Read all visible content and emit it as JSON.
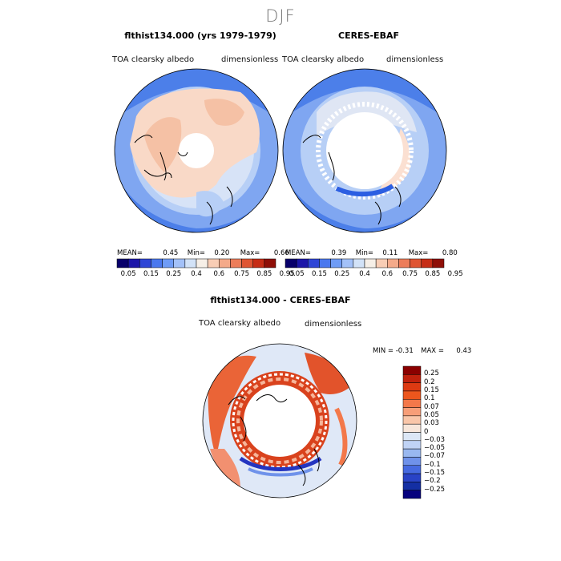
{
  "season": "DJF",
  "panels": [
    {
      "title": "flthist134.000 (yrs 1979-1979)",
      "left_label": "TOA clearsky albedo",
      "right_label": "dimensionless",
      "stats": {
        "mean_label": "MEAN=",
        "mean": "0.45",
        "min_label": "Min=",
        "min": "0.20",
        "max_label": "Max=",
        "max": "0.66"
      }
    },
    {
      "title": "CERES-EBAF",
      "left_label": "TOA clearsky albedo",
      "right_label": "dimensionless",
      "stats": {
        "mean_label": "MEAN=",
        "mean": "0.39",
        "min_label": "Min=",
        "min": "0.11",
        "max_label": "Max=",
        "max": "0.80"
      }
    }
  ],
  "diff": {
    "title": "flthist134.000 - CERES-EBAF",
    "left_label": "TOA clearsky albedo",
    "right_label": "dimensionless",
    "stats": {
      "min_label": "MIN =",
      "min": "-0.31",
      "max_label": "MAX =",
      "max": "0.43"
    }
  },
  "chart_data": [
    {
      "type": "heatmap",
      "projection": "north-polar-stereographic",
      "title": "flthist134.000 (yrs 1979-1979)",
      "variable": "TOA clearsky albedo",
      "units": "dimensionless",
      "mean": 0.45,
      "min": 0.2,
      "max": 0.66,
      "colorbar_levels": [
        "0.05",
        "0.15",
        "0.25",
        "0.4",
        "0.6",
        "0.75",
        "0.85",
        "0.95"
      ]
    },
    {
      "type": "heatmap",
      "projection": "north-polar-stereographic",
      "title": "CERES-EBAF",
      "variable": "TOA clearsky albedo",
      "units": "dimensionless",
      "mean": 0.39,
      "min": 0.11,
      "max": 0.8,
      "colorbar_levels": [
        "0.05",
        "0.15",
        "0.25",
        "0.4",
        "0.6",
        "0.75",
        "0.85",
        "0.95"
      ]
    },
    {
      "type": "heatmap",
      "projection": "north-polar-stereographic",
      "title": "flthist134.000 - CERES-EBAF",
      "variable": "TOA clearsky albedo",
      "units": "dimensionless",
      "min": -0.31,
      "max": 0.43,
      "colorbar_levels": [
        "0.25",
        "0.2",
        "0.15",
        "0.1",
        "0.07",
        "0.05",
        "0.03",
        "0",
        "−0.03",
        "−0.05",
        "−0.07",
        "−0.1",
        "−0.15",
        "−0.2",
        "−0.25"
      ]
    }
  ],
  "colorbars": {
    "top": {
      "colors": [
        "#08006b",
        "#1c16a8",
        "#2f46d6",
        "#4a78ee",
        "#6f9cf6",
        "#a3c1f8",
        "#d2e2f7",
        "#f6efe7",
        "#f8cdb5",
        "#f4aa8a",
        "#ec7d5a",
        "#df5533",
        "#c62d16",
        "#8f0f07"
      ],
      "labels": [
        "0.05",
        "0.15",
        "0.25",
        "0.4",
        "0.6",
        "0.75",
        "0.85",
        "0.95"
      ]
    },
    "diff": {
      "colors": [
        "#8b0000",
        "#c0210d",
        "#dd3a12",
        "#ec561d",
        "#f3784a",
        "#f79e78",
        "#f9c6a9",
        "#f7e6da",
        "#dce7f6",
        "#c0d3f5",
        "#99b8f0",
        "#6f92ea",
        "#466ae0",
        "#2943c6",
        "#142fa3",
        "#07027e"
      ],
      "labels": [
        "0.25",
        "0.2",
        "0.15",
        "0.1",
        "0.07",
        "0.05",
        "0.03",
        "0",
        "−0.03",
        "−0.05",
        "−0.07",
        "−0.1",
        "−0.15",
        "−0.2",
        "−0.25"
      ]
    }
  }
}
